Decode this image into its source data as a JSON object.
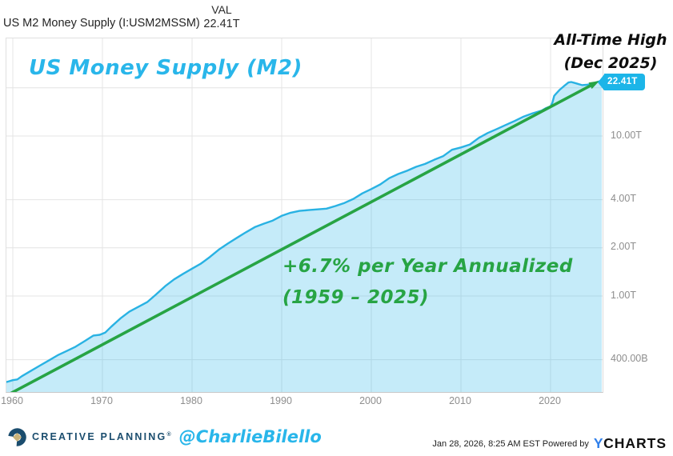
{
  "header": {
    "series_label": "US M2 Money Supply (I:USM2MSSM)",
    "val_column_header": "VAL",
    "val_value": "22.41T"
  },
  "annotations": {
    "chart_title": "US Money Supply (M2)",
    "all_time_high_line1": "All-Time High",
    "all_time_high_line2": "(Dec 2025)",
    "trend_line1": "+6.7% per Year Annualized",
    "trend_line2": "(1959 – 2025)",
    "last_value_badge": "22.41T"
  },
  "colors": {
    "line": "#29b2e3",
    "area_fill": "rgba(41,182,232,0.27)",
    "trend_green": "#27a444",
    "accent_cyan": "#29b6ea",
    "badge_cyan": "#1cb5e8",
    "gridline": "#e4e4e4",
    "axis_text": "#8e8e8e",
    "cp_navy": "#1b4d6e",
    "cp_gold": "#c9b37a",
    "ycharts_blue": "#2f7feb"
  },
  "chart_data": {
    "type": "area",
    "title": "US M2 Money Supply (I:USM2MSSM)",
    "y_scale": "log",
    "grid": true,
    "x_ticks": [
      1960,
      1970,
      1980,
      1990,
      2000,
      2010,
      2020
    ],
    "x_range": [
      1959.3,
      2026.2
    ],
    "y_ticks": [
      {
        "label": "10.00T",
        "trillions": 10
      },
      {
        "label": "4.00T",
        "trillions": 4
      },
      {
        "label": "2.00T",
        "trillions": 2
      },
      {
        "label": "1.00T",
        "trillions": 1
      },
      {
        "label": "400.00B",
        "trillions": 0.4
      }
    ],
    "y_gridlines_trillions": [
      20,
      10,
      4,
      2,
      1,
      0.4
    ],
    "series": [
      {
        "name": "US M2 Money Supply",
        "unit": "billions_usd",
        "points": [
          [
            1959,
            287
          ],
          [
            1959.5,
            292
          ],
          [
            1960,
            298
          ],
          [
            1960.5,
            301
          ],
          [
            1961,
            315
          ],
          [
            1962,
            340
          ],
          [
            1963,
            367
          ],
          [
            1964,
            395
          ],
          [
            1965,
            426
          ],
          [
            1966,
            453
          ],
          [
            1967,
            482
          ],
          [
            1968,
            522
          ],
          [
            1969,
            566
          ],
          [
            1969.7,
            572
          ],
          [
            1970.3,
            590
          ],
          [
            1971,
            644
          ],
          [
            1972,
            724
          ],
          [
            1973,
            798
          ],
          [
            1974,
            855
          ],
          [
            1975,
            916
          ],
          [
            1976,
            1024
          ],
          [
            1977,
            1152
          ],
          [
            1978,
            1270
          ],
          [
            1979,
            1375
          ],
          [
            1980,
            1482
          ],
          [
            1981,
            1596
          ],
          [
            1982,
            1756
          ],
          [
            1983,
            1951
          ],
          [
            1984,
            2127
          ],
          [
            1985,
            2310
          ],
          [
            1986,
            2500
          ],
          [
            1987,
            2695
          ],
          [
            1988,
            2830
          ],
          [
            1989,
            2960
          ],
          [
            1990,
            3168
          ],
          [
            1991,
            3315
          ],
          [
            1992,
            3404
          ],
          [
            1993,
            3442
          ],
          [
            1994,
            3479
          ],
          [
            1995,
            3516
          ],
          [
            1996,
            3651
          ],
          [
            1997,
            3815
          ],
          [
            1998,
            4047
          ],
          [
            1999,
            4381
          ],
          [
            2000,
            4660
          ],
          [
            2001,
            4984
          ],
          [
            2002,
            5450
          ],
          [
            2003,
            5790
          ],
          [
            2004,
            6068
          ],
          [
            2005,
            6420
          ],
          [
            2006,
            6691
          ],
          [
            2007,
            7097
          ],
          [
            2008,
            7472
          ],
          [
            2009,
            8199
          ],
          [
            2010,
            8478
          ],
          [
            2011,
            8848
          ],
          [
            2012,
            9742
          ],
          [
            2013,
            10450
          ],
          [
            2014,
            11055
          ],
          [
            2015,
            11725
          ],
          [
            2016,
            12420
          ],
          [
            2017,
            13230
          ],
          [
            2018,
            13860
          ],
          [
            2019,
            14400
          ],
          [
            2019.5,
            14940
          ],
          [
            2020,
            15330
          ],
          [
            2020.2,
            16100
          ],
          [
            2020.4,
            17800
          ],
          [
            2020.6,
            18350
          ],
          [
            2021,
            19400
          ],
          [
            2021.5,
            20500
          ],
          [
            2022,
            21600
          ],
          [
            2022.3,
            21740
          ],
          [
            2022.7,
            21450
          ],
          [
            2023,
            21200
          ],
          [
            2023.5,
            20800
          ],
          [
            2024,
            20900
          ],
          [
            2024.5,
            21100
          ],
          [
            2025,
            21600
          ],
          [
            2025.5,
            22000
          ],
          [
            2025.92,
            22410
          ]
        ]
      }
    ],
    "trend": {
      "label": "+6.7% per Year Annualized (1959 – 2025)",
      "annual_growth_pct": 6.7,
      "start": [
        1959.55,
        243
      ],
      "end": [
        2025.45,
        22100
      ]
    },
    "last_point": {
      "date": "Dec 2025",
      "value_label": "22.41T",
      "note": "All-Time High"
    }
  },
  "footer": {
    "brand": "CREATIVE PLANNING",
    "brand_mark": "registered",
    "handle": "@CharlieBilello",
    "timestamp": "Jan 28, 2026, 8:25 AM EST Powered by",
    "ycharts_y": "Y",
    "ycharts_rest": "CHARTS"
  }
}
